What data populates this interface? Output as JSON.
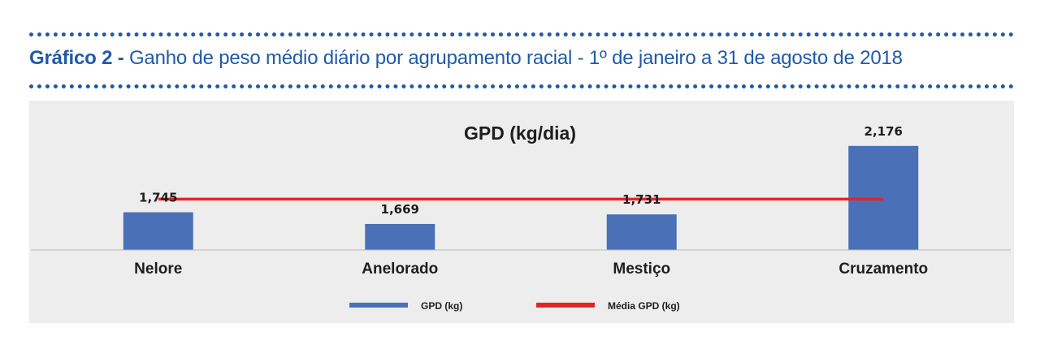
{
  "figure": {
    "label": "Gráfico 2 -",
    "caption": "Ganho de peso médio diário por agrupamento racial - 1º de janeiro a 31 de agosto de 2018"
  },
  "colors": {
    "heading": "#1f5aa6",
    "bar": "#4a71b8",
    "average_line": "#e32526",
    "panel_background": "#ededed"
  },
  "chart_data": {
    "type": "bar",
    "title": "GPD (kg/dia)",
    "xlabel": "",
    "ylabel": "",
    "categories": [
      "Nelore",
      "Anelorado",
      "Mestiço",
      "Cruzamento"
    ],
    "series": [
      {
        "name": "GPD (kg)",
        "type": "bar",
        "values": [
          1.745,
          1.669,
          1.731,
          2.176
        ],
        "labels": [
          "1,745",
          "1,669",
          "1,731",
          "2,176"
        ]
      },
      {
        "name": "Média GPD (kg)",
        "type": "line",
        "values": [
          1.83,
          1.83,
          1.83,
          1.83
        ]
      }
    ],
    "ylim": [
      1.5,
      2.25
    ],
    "grid": false,
    "legend": "bottom"
  }
}
